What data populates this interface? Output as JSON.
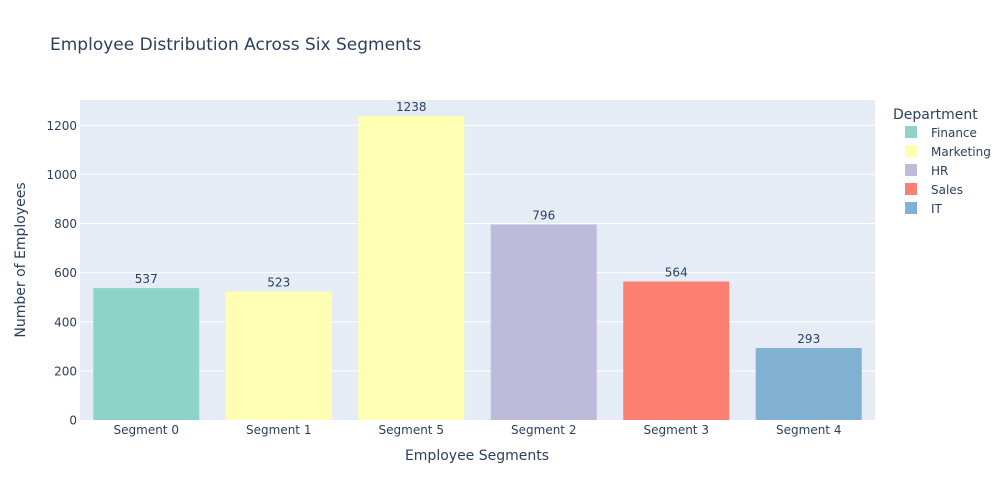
{
  "chart_data": {
    "type": "bar",
    "title": "Employee Distribution Across Six Segments",
    "xlabel": "Employee Segments",
    "ylabel": "Number of Employees",
    "categories": [
      "Segment 0",
      "Segment 1",
      "Segment 5",
      "Segment 2",
      "Segment 3",
      "Segment 4"
    ],
    "values": [
      537,
      523,
      1238,
      796,
      564,
      293
    ],
    "departments": [
      "Finance",
      "Marketing",
      "Marketing",
      "HR",
      "Sales",
      "IT"
    ],
    "ylim": [
      0,
      1303
    ],
    "yticks": [
      0,
      200,
      400,
      600,
      800,
      1000,
      1200
    ],
    "grid": true,
    "legend": {
      "title": "Department",
      "placement": "right",
      "entries": [
        {
          "name": "Finance",
          "color": "#8dd3c7"
        },
        {
          "name": "Marketing",
          "color": "#ffffb3"
        },
        {
          "name": "HR",
          "color": "#bebada"
        },
        {
          "name": "Sales",
          "color": "#fb8072"
        },
        {
          "name": "IT",
          "color": "#80b1d3"
        }
      ]
    },
    "colors": {
      "plot_background": "#e5ecf6",
      "gridline": "#ffffff",
      "text": "#2a3f5f"
    }
  }
}
